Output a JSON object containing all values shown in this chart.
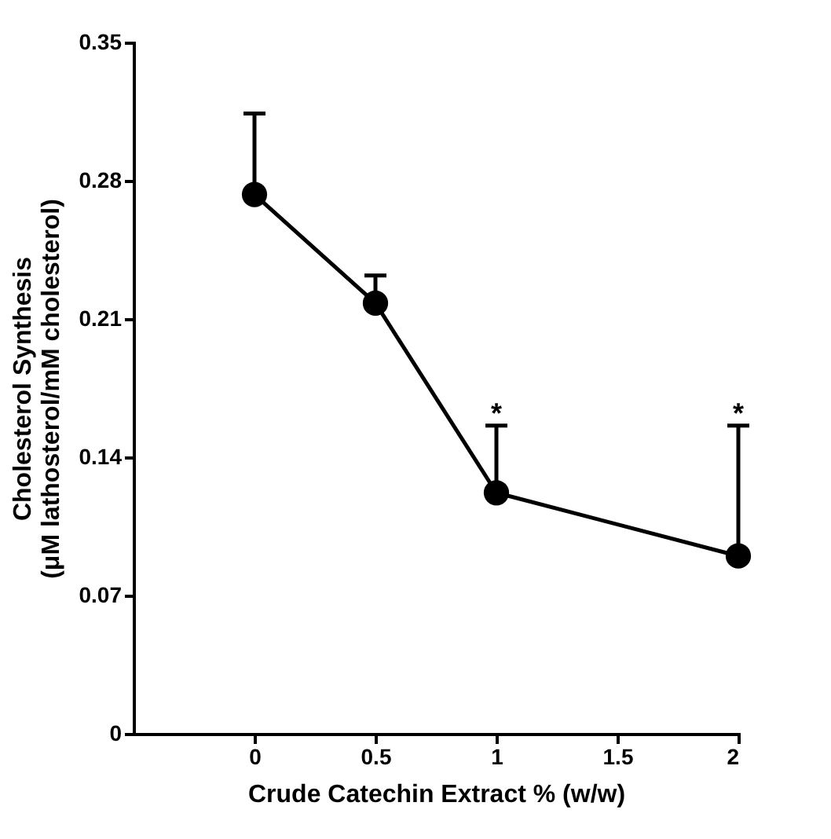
{
  "chart_data": {
    "type": "line",
    "xlabel": "Crude Catechin Extract % (w/w)",
    "ylabel": "Cholesterol Synthesis\n(μM lathosterol/mM cholesterol)",
    "x": [
      0,
      0.5,
      1,
      2
    ],
    "series": [
      {
        "color": "#000000",
        "values": [
          0.273,
          0.218,
          0.122,
          0.09
        ],
        "errors": [
          [
            0.273,
            0.314
          ],
          [
            0.218,
            0.232
          ],
          [
            0.122,
            0.156
          ],
          [
            0.09,
            0.156
          ]
        ]
      }
    ],
    "annotations": [
      {
        "text": "*",
        "x": 1,
        "y": 0.156
      },
      {
        "text": "*",
        "x": 2,
        "y": 0.156
      }
    ],
    "xlim": [
      -0.5,
      2
    ],
    "ylim": [
      0,
      0.35
    ],
    "xticks": [
      0,
      0.5,
      1,
      1.5,
      2
    ],
    "yticks": [
      0,
      0.07,
      0.14,
      0.21,
      0.28,
      0.35
    ],
    "marker": "circle",
    "line_style": "solid",
    "grid": false
  }
}
